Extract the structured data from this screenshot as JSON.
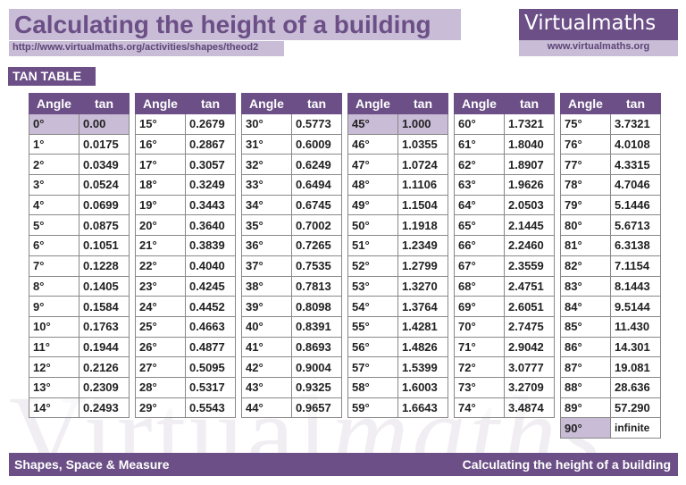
{
  "header": {
    "title": "Calculating the height of a building",
    "url": "http://www.virtualmaths.org/activities/shapes/theod2"
  },
  "logo": {
    "name_part1": "Virtual",
    "name_part2": "maths",
    "url": "www.virtualmaths.org"
  },
  "watermark": {
    "part1": "Virtual",
    "part2": "maths"
  },
  "section_label": "TAN TABLE",
  "table": {
    "col_angle": "Angle",
    "col_tan": "tan",
    "columns": [
      [
        [
          "0°",
          "0.00"
        ],
        [
          "1°",
          "0.0175"
        ],
        [
          "2°",
          "0.0349"
        ],
        [
          "3°",
          "0.0524"
        ],
        [
          "4°",
          "0.0699"
        ],
        [
          "5°",
          "0.0875"
        ],
        [
          "6°",
          "0.1051"
        ],
        [
          "7°",
          "0.1228"
        ],
        [
          "8°",
          "0.1405"
        ],
        [
          "9°",
          "0.1584"
        ],
        [
          "10°",
          "0.1763"
        ],
        [
          "11°",
          "0.1944"
        ],
        [
          "12°",
          "0.2126"
        ],
        [
          "13°",
          "0.2309"
        ],
        [
          "14°",
          "0.2493"
        ]
      ],
      [
        [
          "15°",
          "0.2679"
        ],
        [
          "16°",
          "0.2867"
        ],
        [
          "17°",
          "0.3057"
        ],
        [
          "18°",
          "0.3249"
        ],
        [
          "19°",
          "0.3443"
        ],
        [
          "20°",
          "0.3640"
        ],
        [
          "21°",
          "0.3839"
        ],
        [
          "22°",
          "0.4040"
        ],
        [
          "23°",
          "0.4245"
        ],
        [
          "24°",
          "0.4452"
        ],
        [
          "25°",
          "0.4663"
        ],
        [
          "26°",
          "0.4877"
        ],
        [
          "27°",
          "0.5095"
        ],
        [
          "28°",
          "0.5317"
        ],
        [
          "29°",
          "0.5543"
        ]
      ],
      [
        [
          "30°",
          "0.5773"
        ],
        [
          "31°",
          "0.6009"
        ],
        [
          "32°",
          "0.6249"
        ],
        [
          "33°",
          "0.6494"
        ],
        [
          "34°",
          "0.6745"
        ],
        [
          "35°",
          "0.7002"
        ],
        [
          "36°",
          "0.7265"
        ],
        [
          "37°",
          "0.7535"
        ],
        [
          "38°",
          "0.7813"
        ],
        [
          "39°",
          "0.8098"
        ],
        [
          "40°",
          "0.8391"
        ],
        [
          "41°",
          "0.8693"
        ],
        [
          "42°",
          "0.9004"
        ],
        [
          "43°",
          "0.9325"
        ],
        [
          "44°",
          "0.9657"
        ]
      ],
      [
        [
          "45°",
          "1.000"
        ],
        [
          "46°",
          "1.0355"
        ],
        [
          "47°",
          "1.0724"
        ],
        [
          "48°",
          "1.1106"
        ],
        [
          "49°",
          "1.1504"
        ],
        [
          "50°",
          "1.1918"
        ],
        [
          "51°",
          "1.2349"
        ],
        [
          "52°",
          "1.2799"
        ],
        [
          "53°",
          "1.3270"
        ],
        [
          "54°",
          "1.3764"
        ],
        [
          "55°",
          "1.4281"
        ],
        [
          "56°",
          "1.4826"
        ],
        [
          "57°",
          "1.5399"
        ],
        [
          "58°",
          "1.6003"
        ],
        [
          "59°",
          "1.6643"
        ]
      ],
      [
        [
          "60°",
          "1.7321"
        ],
        [
          "61°",
          "1.8040"
        ],
        [
          "62°",
          "1.8907"
        ],
        [
          "63°",
          "1.9626"
        ],
        [
          "64°",
          "2.0503"
        ],
        [
          "65°",
          "2.1445"
        ],
        [
          "66°",
          "2.2460"
        ],
        [
          "67°",
          "2.3559"
        ],
        [
          "68°",
          "2.4751"
        ],
        [
          "69°",
          "2.6051"
        ],
        [
          "70°",
          "2.7475"
        ],
        [
          "71°",
          "2.9042"
        ],
        [
          "72°",
          "3.0777"
        ],
        [
          "73°",
          "3.2709"
        ],
        [
          "74°",
          "3.4874"
        ]
      ],
      [
        [
          "75°",
          "3.7321"
        ],
        [
          "76°",
          "4.0108"
        ],
        [
          "77°",
          "4.3315"
        ],
        [
          "78°",
          "4.7046"
        ],
        [
          "79°",
          "5.1446"
        ],
        [
          "80°",
          "5.6713"
        ],
        [
          "81°",
          "6.3138"
        ],
        [
          "82°",
          "7.1154"
        ],
        [
          "83°",
          "8.1443"
        ],
        [
          "84°",
          "9.5144"
        ],
        [
          "85°",
          "11.430"
        ],
        [
          "86°",
          "14.301"
        ],
        [
          "87°",
          "19.081"
        ],
        [
          "88°",
          "28.636"
        ],
        [
          "89°",
          "57.290"
        ],
        [
          "90°",
          "infinite"
        ]
      ]
    ]
  },
  "footer": {
    "left": "Shapes, Space & Measure",
    "right": "Calculating the height of a building"
  }
}
